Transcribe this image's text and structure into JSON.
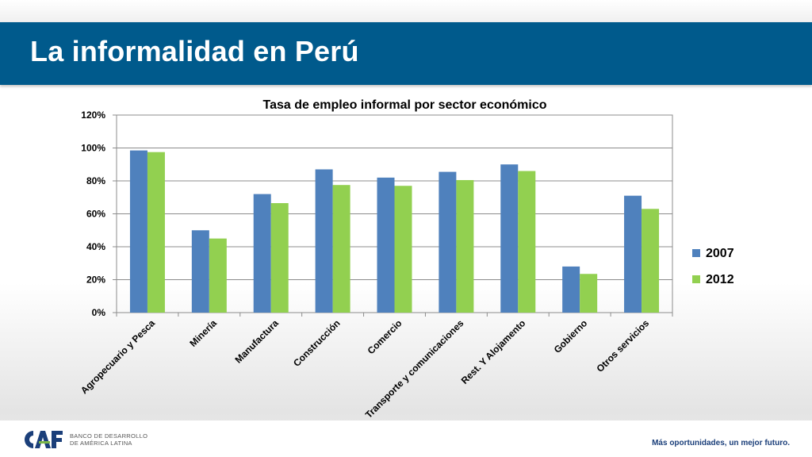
{
  "slide": {
    "title": "La informalidad en Perú"
  },
  "footer": {
    "logo_brand": "CAF",
    "logo_line1": "BANCO DE DESARROLLO",
    "logo_line2": "DE AMÉRICA LATINA",
    "tagline": "Más oportunidades, un mejor futuro."
  },
  "colors": {
    "title_bar": "#005a8c",
    "series_2007": "#4f81bd",
    "series_2012": "#92d050"
  },
  "chart_data": {
    "type": "bar",
    "title": "Tasa de empleo informal por sector económico",
    "xlabel": "",
    "ylabel": "",
    "categories": [
      "Agropecuario y Pesca",
      "Minería",
      "Manufactura",
      "Construcción",
      "Comercio",
      "Transporte y comunicaciones",
      "Rest. Y Alojamento",
      "Gobierno",
      "Otros servicios"
    ],
    "series": [
      {
        "name": "2007",
        "color": "#4f81bd",
        "values": [
          98.5,
          50,
          72,
          87,
          82,
          85.5,
          90,
          28,
          71
        ]
      },
      {
        "name": "2012",
        "color": "#92d050",
        "values": [
          97.5,
          45,
          66.5,
          77.5,
          77,
          80.5,
          86,
          23.5,
          63
        ]
      }
    ],
    "ylim": [
      0,
      120
    ],
    "yticks": [
      "0%",
      "20%",
      "40%",
      "60%",
      "80%",
      "100%",
      "120%"
    ],
    "grid": true,
    "legend": "right"
  }
}
